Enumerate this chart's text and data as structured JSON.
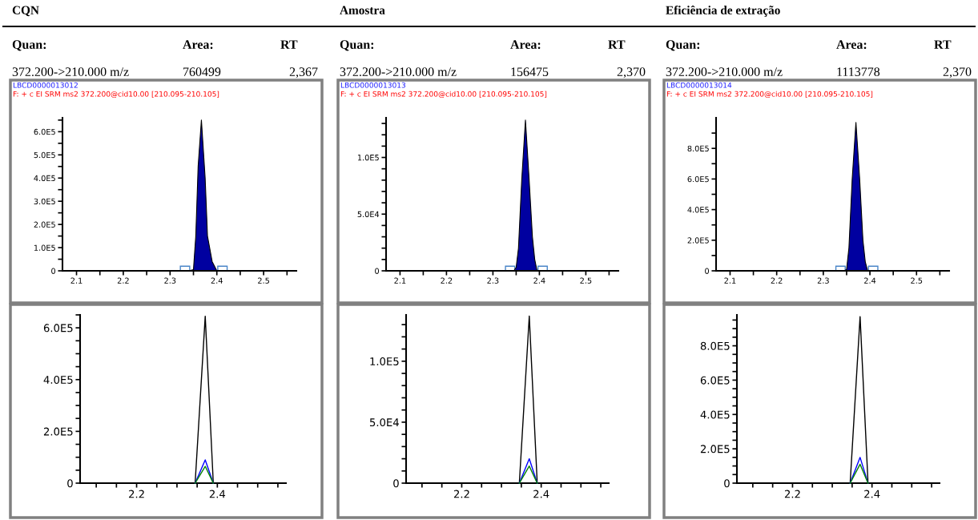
{
  "chart_data": [
    {
      "type": "area",
      "title": "CQN",
      "annotations": [
        "Quan:",
        "Area:",
        "RT",
        "372.200->210.000 m/z",
        "760499",
        "2,367",
        "LBCD0000013012",
        "F: + c EI SRM ms2 372.200@cid10.00 [210.095-210.105]"
      ],
      "x": [
        2.07,
        2.34,
        2.35,
        2.355,
        2.36,
        2.367,
        2.375,
        2.38,
        2.39,
        2.4,
        2.45,
        2.57
      ],
      "series": [
        {
          "color": "#0000a0",
          "values": [
            0,
            0,
            5000,
            150000,
            450000,
            650000,
            400000,
            150000,
            40000,
            0,
            0,
            0
          ]
        }
      ],
      "xlim": [
        2.07,
        2.57
      ],
      "xticks": [
        2.1,
        {
          "value": 2.15,
          "label": null
        },
        2.2,
        {
          "value": 2.25,
          "label": null
        },
        2.3,
        {
          "value": 2.35,
          "label": null
        },
        2.4,
        {
          "value": 2.45,
          "label": null
        },
        2.5,
        {
          "value": 2.55,
          "label": null
        }
      ],
      "ylim": [
        0,
        660000
      ],
      "yticks": [
        {
          "value": 0,
          "label": "0"
        },
        {
          "value": 50000,
          "label": null
        },
        {
          "value": 100000,
          "label": "1.0E5"
        },
        {
          "value": 150000,
          "label": null
        },
        {
          "value": 200000,
          "label": "2.0E5"
        },
        {
          "value": 250000,
          "label": null
        },
        {
          "value": 300000,
          "label": "3.0E5"
        },
        {
          "value": 350000,
          "label": null
        },
        {
          "value": 400000,
          "label": "4.0E5"
        },
        {
          "value": 450000,
          "label": null
        },
        {
          "value": 500000,
          "label": "5.0E5"
        },
        {
          "value": 550000,
          "label": null
        },
        {
          "value": 600000,
          "label": "6.0E5"
        },
        {
          "value": 650000,
          "label": null
        }
      ]
    },
    {
      "type": "area",
      "title": "Amostra",
      "annotations": [
        "Quan:",
        "Area:",
        "RT",
        "372.200->210.000 m/z",
        "156475",
        "2,370",
        "LBCD0000013013",
        "F: + c EI SRM ms2 372.200@cid10.00 [210.095-210.105]"
      ],
      "x": [
        2.07,
        2.345,
        2.35,
        2.355,
        2.362,
        2.37,
        2.378,
        2.385,
        2.39,
        2.395,
        2.45,
        2.57
      ],
      "series": [
        {
          "color": "#0000a0",
          "values": [
            0,
            0,
            3000,
            20000,
            80000,
            133000,
            80000,
            30000,
            10000,
            0,
            0,
            0
          ]
        }
      ],
      "xlim": [
        2.07,
        2.57
      ],
      "xticks": [
        2.1,
        {
          "value": 2.15,
          "label": null
        },
        2.2,
        {
          "value": 2.25,
          "label": null
        },
        2.3,
        {
          "value": 2.35,
          "label": null
        },
        2.4,
        {
          "value": 2.45,
          "label": null
        },
        2.5,
        {
          "value": 2.55,
          "label": null
        }
      ],
      "ylim": [
        0,
        135000
      ],
      "yticks": [
        {
          "value": 0,
          "label": "0"
        },
        {
          "value": 10000,
          "label": null
        },
        {
          "value": 20000,
          "label": null
        },
        {
          "value": 30000,
          "label": null
        },
        {
          "value": 40000,
          "label": null
        },
        {
          "value": 50000,
          "label": "5.0E4"
        },
        {
          "value": 60000,
          "label": null
        },
        {
          "value": 70000,
          "label": null
        },
        {
          "value": 80000,
          "label": null
        },
        {
          "value": 90000,
          "label": null
        },
        {
          "value": 100000,
          "label": "1.0E5"
        },
        {
          "value": 110000,
          "label": null
        },
        {
          "value": 120000,
          "label": null
        },
        {
          "value": 130000,
          "label": null
        }
      ]
    },
    {
      "type": "area",
      "title": "Eficiência de extração",
      "annotations": [
        "Quan:",
        "Area:",
        "RT",
        "372.200->210.000 m/z",
        "1113778",
        "2,370",
        "LBCD0000013014",
        "F: + c EI SRM ms2 372.200@cid10.00 [210.095-210.105]"
      ],
      "x": [
        2.07,
        2.345,
        2.35,
        2.355,
        2.362,
        2.37,
        2.378,
        2.385,
        2.39,
        2.395,
        2.45,
        2.57
      ],
      "series": [
        {
          "color": "#0000a0",
          "values": [
            0,
            0,
            10000,
            150000,
            600000,
            970000,
            600000,
            200000,
            60000,
            0,
            0,
            0
          ]
        }
      ],
      "xlim": [
        2.07,
        2.57
      ],
      "xticks": [
        2.1,
        {
          "value": 2.15,
          "label": null
        },
        2.2,
        {
          "value": 2.25,
          "label": null
        },
        2.3,
        {
          "value": 2.35,
          "label": null
        },
        2.4,
        {
          "value": 2.45,
          "label": null
        },
        2.5,
        {
          "value": 2.55,
          "label": null
        }
      ],
      "ylim": [
        0,
        1000000
      ],
      "yticks": [
        {
          "value": 0,
          "label": "0"
        },
        {
          "value": 100000,
          "label": null
        },
        {
          "value": 200000,
          "label": "2.0E5"
        },
        {
          "value": 300000,
          "label": null
        },
        {
          "value": 400000,
          "label": "4.0E5"
        },
        {
          "value": 500000,
          "label": null
        },
        {
          "value": 600000,
          "label": "6.0E5"
        },
        {
          "value": 700000,
          "label": null
        },
        {
          "value": 800000,
          "label": "8.0E5"
        },
        {
          "value": 900000,
          "label": null
        }
      ]
    },
    {
      "type": "line",
      "x": [
        2.06,
        2.345,
        2.37,
        2.39,
        2.42,
        2.57
      ],
      "series": [
        {
          "color": "#000000",
          "values": [
            0,
            0,
            645000,
            0,
            0,
            0
          ]
        },
        {
          "color": "#0000ff",
          "values": [
            null,
            0,
            90000,
            0,
            null,
            null
          ]
        },
        {
          "color": "#008000",
          "values": [
            null,
            0,
            65000,
            0,
            null,
            null
          ]
        }
      ],
      "xlim": [
        2.06,
        2.57
      ],
      "xticks": [
        {
          "value": 2.1,
          "label": null
        },
        {
          "value": 2.15,
          "label": null
        },
        2.2,
        {
          "value": 2.25,
          "label": null
        },
        {
          "value": 2.3,
          "label": null
        },
        {
          "value": 2.35,
          "label": null
        },
        2.4,
        {
          "value": 2.45,
          "label": null
        },
        {
          "value": 2.5,
          "label": null
        },
        {
          "value": 2.55,
          "label": null
        }
      ],
      "ylim": [
        0,
        650000
      ],
      "yticks": [
        {
          "value": 0,
          "label": "0"
        },
        {
          "value": 50000,
          "label": null
        },
        {
          "value": 100000,
          "label": null
        },
        {
          "value": 150000,
          "label": null
        },
        {
          "value": 200000,
          "label": "2.0E5"
        },
        {
          "value": 250000,
          "label": null
        },
        {
          "value": 300000,
          "label": null
        },
        {
          "value": 350000,
          "label": null
        },
        {
          "value": 400000,
          "label": "4.0E5"
        },
        {
          "value": 450000,
          "label": null
        },
        {
          "value": 500000,
          "label": null
        },
        {
          "value": 550000,
          "label": null
        },
        {
          "value": 600000,
          "label": "6.0E5"
        },
        {
          "value": 650000,
          "label": null
        }
      ]
    },
    {
      "type": "line",
      "x": [
        2.06,
        2.345,
        2.37,
        2.39,
        2.42,
        2.57
      ],
      "series": [
        {
          "color": "#000000",
          "values": [
            0,
            0,
            137000,
            0,
            0,
            0
          ]
        },
        {
          "color": "#0000ff",
          "values": [
            null,
            0,
            20000,
            0,
            null,
            null
          ]
        },
        {
          "color": "#008000",
          "values": [
            null,
            0,
            14000,
            0,
            null,
            null
          ]
        }
      ],
      "xlim": [
        2.06,
        2.57
      ],
      "xticks": [
        {
          "value": 2.1,
          "label": null
        },
        {
          "value": 2.15,
          "label": null
        },
        2.2,
        {
          "value": 2.25,
          "label": null
        },
        {
          "value": 2.3,
          "label": null
        },
        {
          "value": 2.35,
          "label": null
        },
        2.4,
        {
          "value": 2.45,
          "label": null
        },
        {
          "value": 2.5,
          "label": null
        },
        {
          "value": 2.55,
          "label": null
        }
      ],
      "ylim": [
        0,
        138000
      ],
      "yticks": [
        {
          "value": 0,
          "label": "0"
        },
        {
          "value": 10000,
          "label": null
        },
        {
          "value": 20000,
          "label": null
        },
        {
          "value": 30000,
          "label": null
        },
        {
          "value": 40000,
          "label": null
        },
        {
          "value": 50000,
          "label": "5.0E4"
        },
        {
          "value": 60000,
          "label": null
        },
        {
          "value": 70000,
          "label": null
        },
        {
          "value": 80000,
          "label": null
        },
        {
          "value": 90000,
          "label": null
        },
        {
          "value": 100000,
          "label": "1.0E5"
        },
        {
          "value": 110000,
          "label": null
        },
        {
          "value": 120000,
          "label": null
        },
        {
          "value": 130000,
          "label": null
        }
      ]
    },
    {
      "type": "line",
      "x": [
        2.06,
        2.345,
        2.37,
        2.39,
        2.42,
        2.57
      ],
      "series": [
        {
          "color": "#000000",
          "values": [
            0,
            0,
            970000,
            0,
            0,
            0
          ]
        },
        {
          "color": "#0000ff",
          "values": [
            null,
            0,
            150000,
            0,
            null,
            null
          ]
        },
        {
          "color": "#008000",
          "values": [
            null,
            0,
            110000,
            0,
            null,
            null
          ]
        }
      ],
      "xlim": [
        2.06,
        2.57
      ],
      "xticks": [
        {
          "value": 2.1,
          "label": null
        },
        {
          "value": 2.15,
          "label": null
        },
        2.2,
        {
          "value": 2.25,
          "label": null
        },
        {
          "value": 2.3,
          "label": null
        },
        {
          "value": 2.35,
          "label": null
        },
        2.4,
        {
          "value": 2.45,
          "label": null
        },
        {
          "value": 2.5,
          "label": null
        },
        {
          "value": 2.55,
          "label": null
        }
      ],
      "ylim": [
        0,
        980000
      ],
      "yticks": [
        {
          "value": 0,
          "label": "0"
        },
        {
          "value": 50000,
          "label": null
        },
        {
          "value": 100000,
          "label": null
        },
        {
          "value": 150000,
          "label": null
        },
        {
          "value": 200000,
          "label": "2.0E5"
        },
        {
          "value": 250000,
          "label": null
        },
        {
          "value": 300000,
          "label": null
        },
        {
          "value": 350000,
          "label": null
        },
        {
          "value": 400000,
          "label": "4.0E5"
        },
        {
          "value": 450000,
          "label": null
        },
        {
          "value": 500000,
          "label": null
        },
        {
          "value": 550000,
          "label": null
        },
        {
          "value": 600000,
          "label": "6.0E5"
        },
        {
          "value": 650000,
          "label": null
        },
        {
          "value": 700000,
          "label": null
        },
        {
          "value": 750000,
          "label": null
        },
        {
          "value": 800000,
          "label": "8.0E5"
        },
        {
          "value": 850000,
          "label": null
        },
        {
          "value": 900000,
          "label": null
        },
        {
          "value": 950000,
          "label": null
        }
      ]
    }
  ]
}
